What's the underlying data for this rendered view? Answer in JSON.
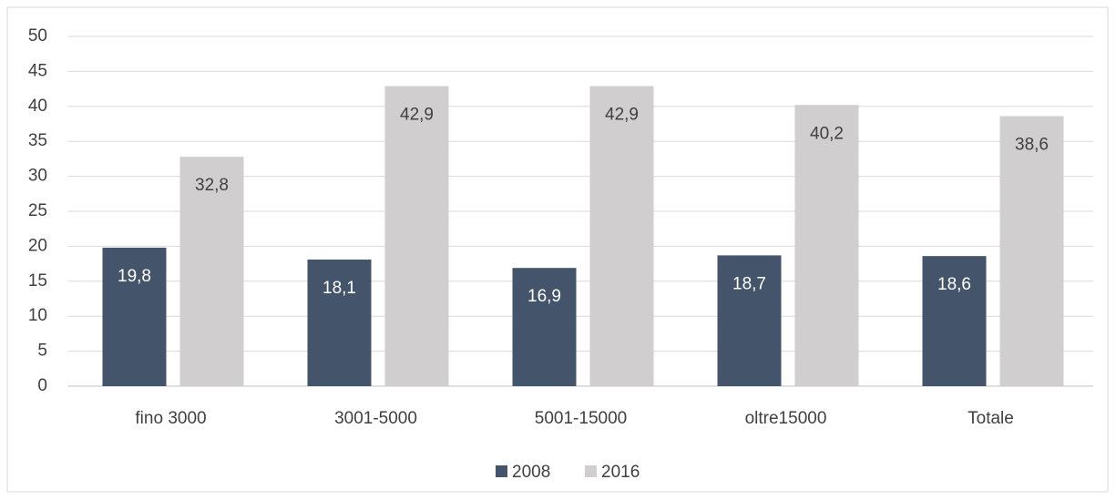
{
  "chart_data": {
    "type": "bar",
    "categories": [
      "fino 3000",
      "3001-5000",
      "5001-15000",
      "oltre15000",
      "Totale"
    ],
    "series": [
      {
        "name": "2008",
        "color": "#44546a",
        "values": [
          19.8,
          18.1,
          16.9,
          18.7,
          18.6
        ],
        "value_labels": [
          "19,8",
          "18,1",
          "16,9",
          "18,7",
          "18,6"
        ]
      },
      {
        "name": "2016",
        "color": "#d0cece",
        "values": [
          32.8,
          42.9,
          42.9,
          40.2,
          38.6
        ],
        "value_labels": [
          "32,8",
          "42,9",
          "42,9",
          "40,2",
          "38,6"
        ]
      }
    ],
    "ylim": [
      0,
      50
    ],
    "yticks": [
      0,
      5,
      10,
      15,
      20,
      25,
      30,
      35,
      40,
      45,
      50
    ],
    "grid": true,
    "legend": "bottom"
  }
}
